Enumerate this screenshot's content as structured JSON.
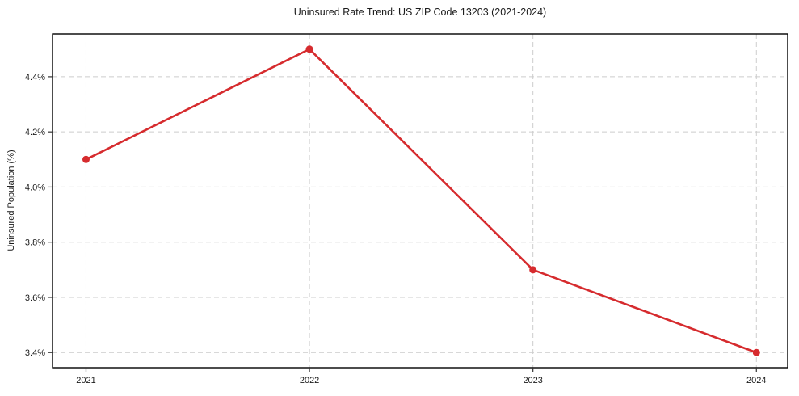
{
  "chart_data": {
    "type": "line",
    "title": "Uninsured Rate Trend: US ZIP Code 13203 (2021-2024)",
    "xlabel": "",
    "ylabel": "Uninsured Population (%)",
    "x": [
      2021,
      2022,
      2023,
      2024
    ],
    "series": [
      {
        "name": "Uninsured Rate",
        "values": [
          4.1,
          4.5,
          3.7,
          3.4
        ]
      }
    ],
    "x_tick_labels": [
      "2021",
      "2022",
      "2023",
      "2024"
    ],
    "y_ticks": [
      3.4,
      3.6,
      3.8,
      4.0,
      4.2,
      4.4
    ],
    "y_tick_labels": [
      "3.4%",
      "3.6%",
      "3.8%",
      "4.0%",
      "4.2%",
      "4.4%"
    ],
    "xlim": [
      2020.85,
      2024.14
    ],
    "ylim": [
      3.345,
      4.555
    ],
    "grid": true,
    "grid_style": "dashed",
    "legend": "none",
    "colors": {
      "line": "#d62b2e",
      "marker": "#d62b2e",
      "grid": "#cccccc",
      "spine": "#000000",
      "tick": "#333333",
      "text": "#1a1a1a"
    }
  }
}
